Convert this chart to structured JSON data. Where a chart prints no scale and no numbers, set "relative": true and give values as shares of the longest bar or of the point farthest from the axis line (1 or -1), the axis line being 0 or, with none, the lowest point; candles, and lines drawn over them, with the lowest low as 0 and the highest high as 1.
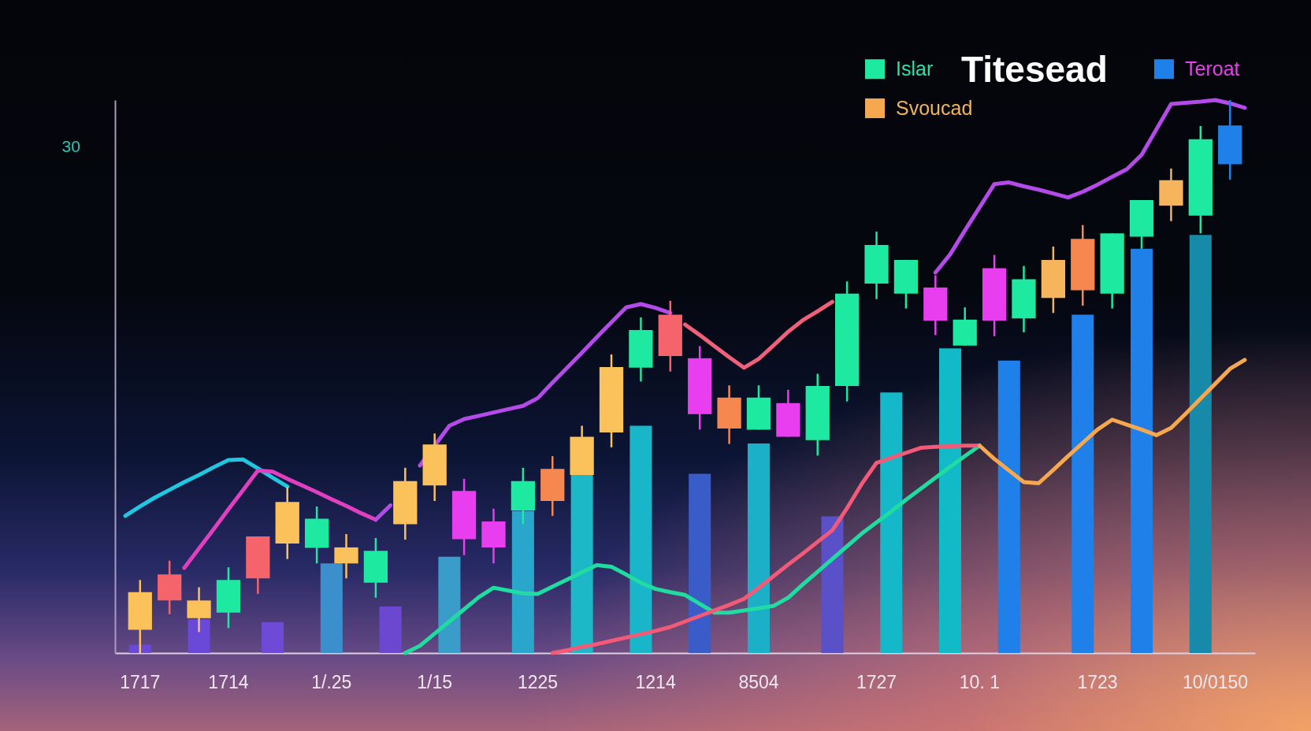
{
  "chart_data": {
    "type": "candlestick",
    "title": "Titesead",
    "ylabel": "30",
    "relative": true,
    "categories": [
      null,
      "1717",
      null,
      null,
      null,
      null,
      null,
      "1714",
      null,
      null,
      null,
      null,
      null,
      null,
      "1/.25",
      null,
      null,
      null,
      null,
      null,
      null,
      "1/15",
      null,
      null,
      null,
      null,
      null,
      null,
      "1225",
      null,
      null,
      null,
      null,
      null,
      null,
      null,
      "1214",
      null,
      null,
      null,
      null,
      null,
      null,
      "8504",
      null,
      null,
      null,
      null,
      null,
      null,
      null,
      "1727",
      null,
      null,
      null,
      null,
      null,
      null,
      "10. 1",
      null,
      null,
      null,
      null,
      null,
      null,
      null,
      "1723",
      null,
      null,
      null,
      null,
      null,
      null,
      null,
      "10/0150",
      null,
      null
    ],
    "legend": "top right",
    "series": [
      {
        "name": "Islar",
        "color": "#1de9a0",
        "ohlc": [
          null,
          [
            0.042,
            0.132,
            0,
            0.11
          ],
          null,
          [
            0.142,
            0.167,
            0.07,
            0.095
          ],
          null,
          [
            0.063,
            0.119,
            0.038,
            0.095
          ],
          null,
          [
            0.073,
            0.155,
            0.045,
            0.132
          ],
          null,
          [
            0.211,
            0.211,
            0.107,
            0.135
          ],
          null,
          [
            0.198,
            0.3,
            0.17,
            0.273
          ],
          null,
          [
            0.19,
            0.265,
            0.162,
            0.243
          ],
          null,
          [
            0.162,
            0.215,
            0.135,
            0.191
          ],
          null,
          [
            0.127,
            0.208,
            0.1,
            0.185
          ],
          null,
          [
            0.233,
            0.335,
            0.205,
            0.311
          ],
          null,
          [
            0.303,
            0.397,
            0.275,
            0.377
          ],
          null,
          [
            0.293,
            0.315,
            0.177,
            0.206
          ],
          null,
          [
            0.238,
            0.261,
            0.162,
            0.191
          ],
          null,
          [
            0.258,
            0.335,
            0.233,
            0.311
          ],
          null,
          [
            0.333,
            0.356,
            0.248,
            0.275
          ],
          null,
          [
            0.322,
            0.411,
            0.322,
            0.391
          ],
          null,
          [
            0.399,
            0.54,
            0.372,
            0.517
          ],
          null,
          [
            0.516,
            0.607,
            0.491,
            0.584
          ],
          null,
          [
            0.612,
            0.637,
            0.509,
            0.537
          ],
          null,
          [
            0.533,
            0.555,
            0.404,
            0.432
          ],
          null,
          [
            0.462,
            0.484,
            0.378,
            0.406
          ],
          null,
          [
            0.404,
            0.484,
            0.404,
            0.462
          ],
          null,
          [
            0.452,
            0.476,
            0.391,
            0.391
          ],
          null,
          [
            0.385,
            0.505,
            0.357,
            0.483
          ],
          null,
          [
            0.483,
            0.672,
            0.455,
            0.65
          ],
          null,
          [
            0.668,
            0.762,
            0.64,
            0.738
          ],
          null,
          [
            0.65,
            0.711,
            0.623,
            0.711
          ],
          null,
          [
            0.661,
            0.683,
            0.575,
            0.601
          ],
          null,
          [
            0.556,
            0.625,
            0.556,
            0.603
          ],
          null,
          [
            0.696,
            0.72,
            0.573,
            0.601
          ],
          null,
          [
            0.605,
            0.7,
            0.58,
            0.676
          ],
          null,
          [
            0.642,
            0.735,
            0.615,
            0.711
          ],
          null,
          [
            0.749,
            0.774,
            0.628,
            0.656
          ],
          null,
          [
            0.65,
            0.759,
            0.623,
            0.759
          ],
          null,
          [
            0.753,
            0.819,
            0.731,
            0.819
          ],
          null,
          [
            0.809,
            0.876,
            0.781,
            0.855
          ],
          null,
          [
            0.791,
            0.953,
            0.759,
            0.929
          ],
          null,
          [
            0.884,
            1,
            0.856,
            0.954
          ],
          null
        ],
        "colors": [
          null,
          "#fbc25c",
          null,
          "#f4646a",
          null,
          "#fbc25c",
          null,
          "#1de9a0",
          null,
          "#f4646a",
          null,
          "#fbc25c",
          null,
          "#1de9a0",
          null,
          "#fbc25c",
          null,
          "#1de9a0",
          null,
          "#fbc25c",
          null,
          "#fbc25c",
          null,
          "#e83ef0",
          null,
          "#e83ef0",
          null,
          "#1de9a0",
          null,
          "#f5874f",
          null,
          "#fbc25c",
          null,
          "#fbc25c",
          null,
          "#1de9a0",
          null,
          "#f4646a",
          null,
          "#e83ef0",
          null,
          "#f5874f",
          null,
          "#1de9a0",
          null,
          "#e83ef0",
          null,
          "#1de9a0",
          null,
          "#1de9a0",
          null,
          "#1de9a0",
          null,
          "#1de9a0",
          null,
          "#e83ef0",
          null,
          "#1de9a0",
          null,
          "#e83ef0",
          null,
          "#1de9a0",
          null,
          "#f6b45c",
          null,
          "#f5874f",
          null,
          "#1de9a0",
          null,
          "#1de9a0",
          null,
          "#f6b45c",
          null,
          "#1de9a0",
          null,
          "#1e80e8",
          null
        ]
      },
      {
        "type": "bar",
        "name": "Teroat",
        "color": "#1e80e8",
        "values": [
          null,
          0.015,
          null,
          null,
          null,
          0.061,
          null,
          null,
          null,
          null,
          0.056,
          null,
          null,
          null,
          0.162,
          null,
          null,
          null,
          0.084,
          null,
          null,
          null,
          0.174,
          null,
          null,
          null,
          null,
          0.257,
          null,
          null,
          null,
          0.322,
          null,
          null,
          null,
          0.411,
          null,
          null,
          null,
          0.324,
          null,
          null,
          null,
          0.379,
          null,
          null,
          null,
          null,
          0.247,
          null,
          null,
          null,
          0.471,
          null,
          null,
          null,
          0.551,
          null,
          null,
          null,
          0.529,
          null,
          null,
          null,
          null,
          0.612,
          null,
          null,
          null,
          0.731,
          null,
          null,
          null,
          0.756,
          null,
          null,
          null
        ],
        "colors": [
          null,
          "#6a48d8",
          null,
          null,
          null,
          "#6a48d8",
          null,
          null,
          null,
          null,
          "#6e4ad6",
          null,
          null,
          null,
          "#3b8fcc",
          null,
          null,
          null,
          "#6c48d0",
          null,
          null,
          null,
          "#3a9cc8",
          null,
          null,
          null,
          null,
          "#2aa6cc",
          null,
          null,
          null,
          "#1cb8c8",
          null,
          null,
          null,
          "#18b6c8",
          null,
          null,
          null,
          "#3a5cc8",
          null,
          null,
          null,
          "#1cb0c8",
          null,
          null,
          null,
          null,
          "#5a50c8",
          null,
          null,
          null,
          "#14b8c8",
          null,
          null,
          null,
          "#12bac8",
          null,
          null,
          null,
          "#1e80e8",
          null,
          null,
          null,
          null,
          "#1e80e8",
          null,
          null,
          null,
          "#1e80e8",
          null,
          null,
          null,
          "#168aa8",
          null,
          null,
          null
        ]
      },
      {
        "type": "line",
        "color": "#1fc8e0",
        "values": [
          0.248,
          0.265,
          0.281,
          0.295,
          0.309,
          0.322,
          0.336,
          0.349,
          0.35,
          0.334,
          0.317,
          0.301,
          null,
          null,
          null,
          null,
          null,
          null,
          null,
          null,
          null,
          null,
          null,
          null,
          null,
          null,
          null,
          null,
          null,
          null,
          null,
          null,
          null,
          null,
          null,
          null,
          null,
          null,
          null,
          null,
          null,
          null,
          null,
          null,
          null,
          null,
          null,
          null,
          null,
          null,
          null,
          null,
          null,
          null,
          null,
          null,
          null,
          null,
          null,
          null,
          null,
          null,
          null,
          null,
          null,
          null,
          null,
          null,
          null,
          null,
          null,
          null,
          null,
          null,
          null,
          null,
          null
        ]
      },
      {
        "type": "line",
        "color": "#e040c0",
        "values": [
          null,
          null,
          null,
          null,
          0.154,
          0.189,
          0.224,
          0.26,
          0.295,
          0.33,
          0.328,
          0.315,
          0.303,
          0.291,
          0.278,
          0.266,
          0.253,
          0.241,
          null,
          null,
          null,
          null,
          null,
          null,
          null,
          null,
          null,
          null,
          null,
          null,
          null,
          null,
          null,
          null,
          null,
          null,
          null,
          null,
          null,
          null,
          null,
          null,
          null,
          null,
          null,
          null,
          null,
          null,
          null,
          null,
          null,
          null,
          null,
          null,
          null,
          null,
          null,
          null,
          null,
          null,
          null,
          null,
          null,
          null,
          null,
          null,
          null,
          null,
          null,
          null,
          null,
          null,
          null,
          null,
          null,
          null,
          null
        ]
      },
      {
        "type": "line",
        "color": "#b44ae8",
        "values": [
          null,
          null,
          null,
          null,
          null,
          null,
          null,
          null,
          null,
          null,
          null,
          null,
          null,
          null,
          null,
          null,
          null,
          0.241,
          0.267,
          null,
          0.339,
          0.375,
          0.411,
          0.423,
          0.429,
          0.435,
          0.441,
          0.447,
          0.461,
          0.489,
          0.516,
          0.543,
          0.571,
          0.598,
          0.625,
          0.631,
          0.624,
          0.615,
          null,
          null,
          null,
          null,
          null,
          null,
          null,
          null,
          null,
          null,
          null,
          null,
          null,
          null,
          null,
          null,
          null,
          0.688,
          0.721,
          0.764,
          0.806,
          0.848,
          0.851,
          0.844,
          0.838,
          0.831,
          0.824,
          0.834,
          0.847,
          0.861,
          0.875,
          0.901,
          0.947,
          0.993,
          0.995,
          0.997,
          1,
          0.994,
          0.986
        ]
      },
      {
        "type": "line",
        "color": "#f0607a",
        "values": [
          null,
          null,
          null,
          null,
          null,
          null,
          null,
          null,
          null,
          null,
          null,
          null,
          null,
          null,
          null,
          null,
          null,
          null,
          null,
          null,
          null,
          null,
          null,
          null,
          null,
          null,
          null,
          null,
          null,
          null,
          null,
          null,
          null,
          null,
          null,
          null,
          null,
          null,
          0.594,
          0.575,
          0.555,
          0.535,
          0.516,
          0.532,
          0.556,
          0.581,
          0.602,
          0.618,
          0.635,
          null,
          null,
          null,
          null,
          null,
          null,
          null,
          null,
          null,
          null,
          null,
          null,
          null,
          null,
          null,
          null,
          null,
          null,
          null,
          null,
          null,
          null,
          null,
          null,
          null,
          null,
          null,
          null
        ]
      },
      {
        "type": "line",
        "color": "#20dca0",
        "values": [
          null,
          null,
          null,
          null,
          null,
          null,
          null,
          null,
          null,
          null,
          null,
          null,
          null,
          null,
          null,
          null,
          null,
          null,
          null,
          0,
          0.013,
          0.035,
          0.057,
          0.079,
          0.101,
          0.118,
          0.113,
          0.108,
          0.107,
          0.12,
          0.133,
          0.146,
          0.159,
          0.156,
          0.142,
          0.127,
          0.116,
          0.11,
          0.105,
          0.089,
          0.073,
          0.073,
          0.077,
          0.081,
          0.085,
          0.1,
          0.124,
          0.147,
          0.17,
          0.193,
          0.216,
          0.236,
          0.256,
          0.277,
          0.297,
          0.317,
          0.337,
          0.356,
          0.375,
          null,
          null,
          null,
          null,
          null,
          null,
          null,
          null,
          null,
          null,
          null,
          null,
          null,
          null,
          null,
          null,
          null,
          null
        ]
      },
      {
        "type": "line",
        "color": "#f25a78",
        "values": [
          null,
          null,
          null,
          null,
          null,
          null,
          null,
          null,
          null,
          null,
          null,
          null,
          null,
          null,
          null,
          null,
          null,
          null,
          null,
          null,
          null,
          null,
          null,
          null,
          null,
          null,
          null,
          null,
          null,
          0,
          0.005,
          0.011,
          0.016,
          0.022,
          0.028,
          0.034,
          0.04,
          0.047,
          0.057,
          0.067,
          0.077,
          0.087,
          0.098,
          0.118,
          0.139,
          0.16,
          0.18,
          0.201,
          0.222,
          0.262,
          0.306,
          0.344,
          0.353,
          0.362,
          0.371,
          0.373,
          0.374,
          0.375,
          0.375,
          null,
          null,
          null,
          null,
          null,
          null,
          null,
          null,
          null,
          null,
          null,
          null,
          null,
          null,
          null,
          null,
          null,
          null
        ]
      },
      {
        "type": "line",
        "name": "Svoucad",
        "color": "#f5a850",
        "values": [
          null,
          null,
          null,
          null,
          null,
          null,
          null,
          null,
          null,
          null,
          null,
          null,
          null,
          null,
          null,
          null,
          null,
          null,
          null,
          null,
          null,
          null,
          null,
          null,
          null,
          null,
          null,
          null,
          null,
          null,
          null,
          null,
          null,
          null,
          null,
          null,
          null,
          null,
          null,
          null,
          null,
          null,
          null,
          null,
          null,
          null,
          null,
          null,
          null,
          null,
          null,
          null,
          null,
          null,
          null,
          null,
          null,
          null,
          0.375,
          0.351,
          0.33,
          0.309,
          0.307,
          0.331,
          0.356,
          0.38,
          0.404,
          0.422,
          0.413,
          0.404,
          0.394,
          0.407,
          0.433,
          0.46,
          0.487,
          0.514,
          0.53
        ]
      }
    ]
  }
}
